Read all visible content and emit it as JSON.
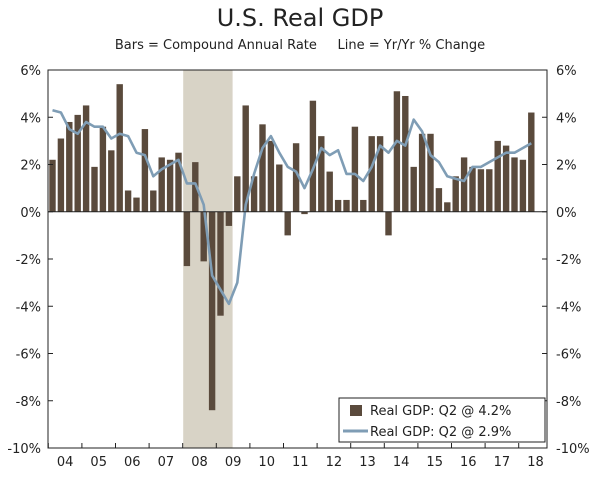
{
  "chart_data": {
    "type": "bar",
    "title": "U.S. Real GDP",
    "subtitle": "Bars = Compound Annual Rate     Line = Yr/Yr % Change",
    "xlabel": "",
    "ylabel": "",
    "ylim": [
      -10,
      6
    ],
    "y_ticks": [
      "6%",
      "4%",
      "2%",
      "0%",
      "-2%",
      "-4%",
      "-6%",
      "-8%",
      "-10%"
    ],
    "x_tick_labels": [
      "04",
      "05",
      "06",
      "07",
      "08",
      "09",
      "10",
      "11",
      "12",
      "13",
      "14",
      "15",
      "16",
      "17",
      "18"
    ],
    "recession_shading": {
      "start_quarter_index": 16,
      "end_quarter_index": 21
    },
    "colors": {
      "bars": "#5a4a3c",
      "line": "#7f9db5",
      "recession": "#d8d3c6",
      "axis": "#222222"
    },
    "series": [
      {
        "name": "Real GDP: Q2 @ 4.2%",
        "type": "bar",
        "values": [
          2.2,
          3.1,
          3.8,
          4.1,
          4.5,
          1.9,
          3.6,
          2.6,
          5.4,
          0.9,
          0.6,
          3.5,
          0.9,
          2.3,
          2.2,
          2.5,
          -2.3,
          2.1,
          -2.1,
          -8.4,
          -4.4,
          -0.6,
          1.5,
          4.5,
          1.5,
          3.7,
          3.0,
          2.0,
          -1.0,
          2.9,
          -0.1,
          4.7,
          3.2,
          1.7,
          0.5,
          0.5,
          3.6,
          0.5,
          3.2,
          3.2,
          -1.0,
          5.1,
          4.9,
          1.9,
          3.3,
          3.3,
          1.0,
          0.4,
          1.5,
          2.3,
          1.9,
          1.8,
          1.8,
          3.0,
          2.8,
          2.3,
          2.2,
          4.2
        ]
      },
      {
        "name": "Real GDP: Q2 @ 2.9%",
        "type": "line",
        "values": [
          4.3,
          4.2,
          3.5,
          3.3,
          3.8,
          3.6,
          3.6,
          3.1,
          3.3,
          3.2,
          2.5,
          2.4,
          1.5,
          1.8,
          2.0,
          2.2,
          1.2,
          1.2,
          0.3,
          -2.7,
          -3.3,
          -3.9,
          -3.0,
          0.3,
          1.6,
          2.7,
          3.2,
          2.5,
          1.9,
          1.7,
          1.0,
          1.8,
          2.7,
          2.4,
          2.6,
          1.6,
          1.6,
          1.3,
          1.9,
          2.8,
          2.5,
          3.0,
          2.8,
          3.9,
          3.4,
          2.4,
          2.1,
          1.5,
          1.4,
          1.3,
          1.9,
          1.9,
          2.1,
          2.3,
          2.5,
          2.5,
          2.7,
          2.9
        ]
      }
    ]
  }
}
